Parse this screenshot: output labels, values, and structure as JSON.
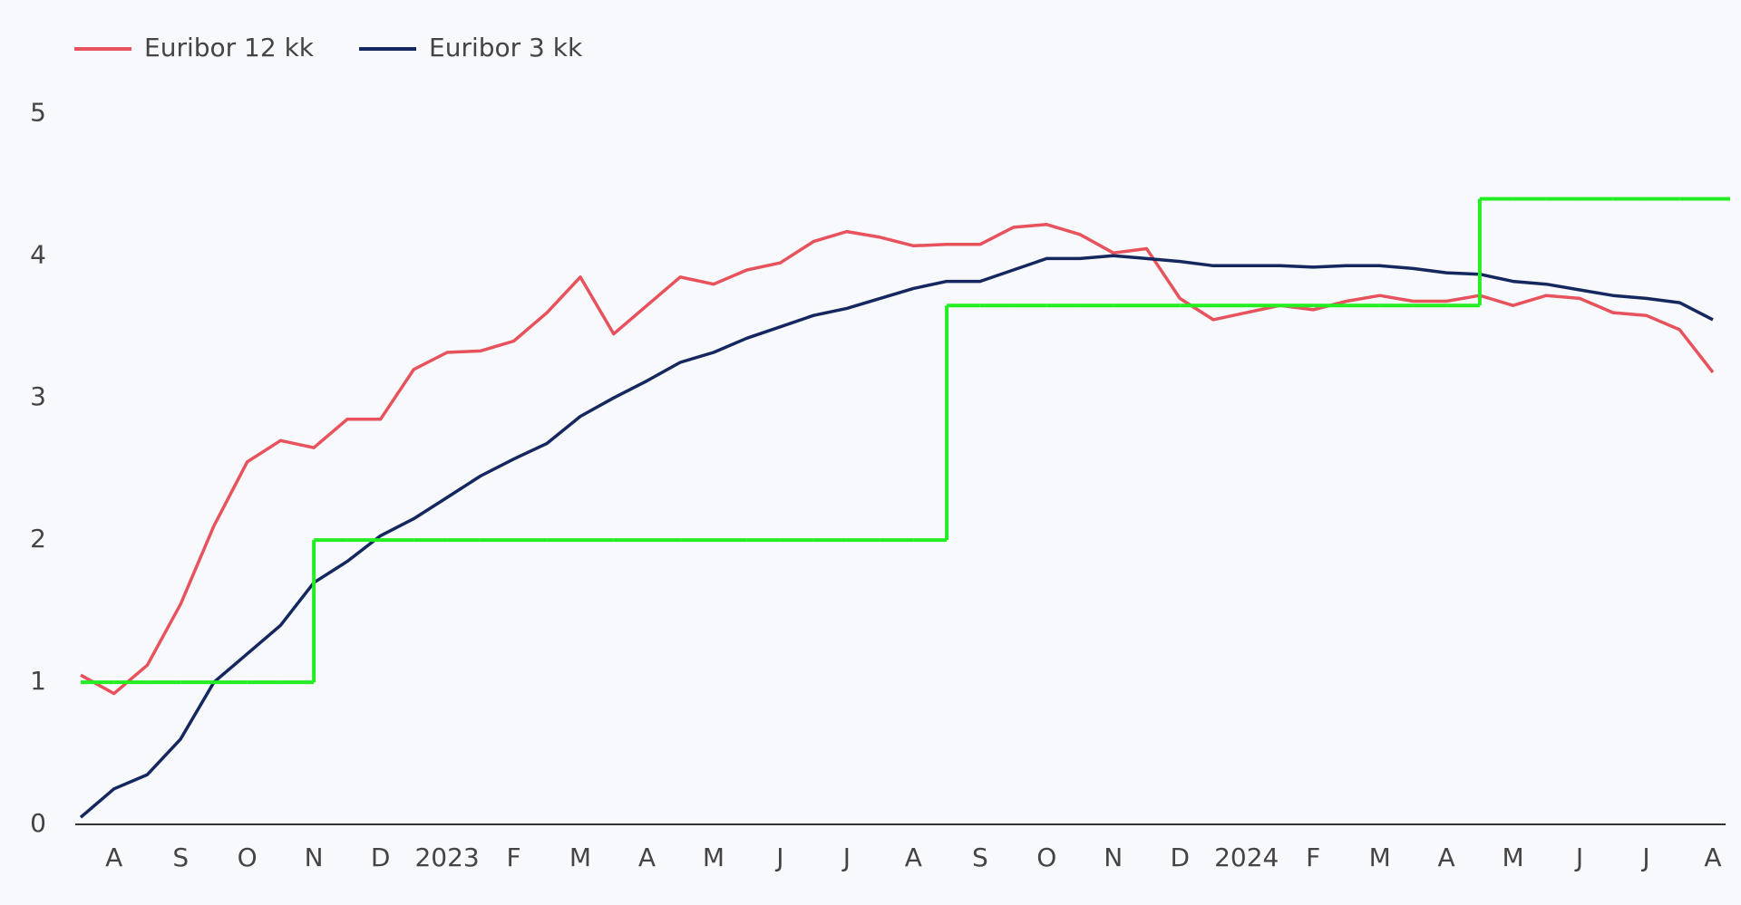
{
  "chart_data": {
    "type": "line",
    "categories": [
      null,
      "A",
      null,
      "S",
      null,
      "O",
      null,
      "N",
      null,
      "D",
      null,
      "2023",
      null,
      "F",
      null,
      "M",
      null,
      "A",
      null,
      "M",
      null,
      "J",
      null,
      "J",
      null,
      "A",
      null,
      "S",
      null,
      "O",
      null,
      "N",
      null,
      "D",
      null,
      "2024",
      null,
      "F",
      null,
      "M",
      null,
      "A",
      null,
      "M",
      null,
      "J",
      null,
      "J",
      null,
      "A"
    ],
    "series": [
      {
        "name": "Euribor 12 kk",
        "color": "#e8525c",
        "values": [
          1.05,
          0.92,
          1.12,
          1.55,
          2.1,
          2.55,
          2.7,
          2.65,
          2.85,
          2.85,
          3.2,
          3.32,
          3.33,
          3.4,
          3.6,
          3.85,
          3.45,
          3.65,
          3.85,
          3.8,
          3.9,
          3.95,
          4.1,
          4.17,
          4.13,
          4.07,
          4.08,
          4.08,
          4.2,
          4.22,
          4.15,
          4.02,
          4.05,
          3.7,
          3.55,
          3.6,
          3.65,
          3.62,
          3.68,
          3.72,
          3.68,
          3.68,
          3.72,
          3.65,
          3.72,
          3.7,
          3.6,
          3.58,
          3.48,
          3.18
        ]
      },
      {
        "name": "Euribor 3 kk",
        "color": "#14285f",
        "values": [
          0.05,
          0.25,
          0.35,
          0.6,
          1.0,
          1.2,
          1.4,
          1.7,
          1.85,
          2.03,
          2.15,
          2.3,
          2.45,
          2.57,
          2.68,
          2.87,
          3.0,
          3.12,
          3.25,
          3.32,
          3.42,
          3.5,
          3.58,
          3.63,
          3.7,
          3.77,
          3.82,
          3.82,
          3.9,
          3.98,
          3.98,
          4.0,
          3.98,
          3.96,
          3.93,
          3.93,
          3.93,
          3.92,
          3.93,
          3.93,
          3.91,
          3.88,
          3.87,
          3.82,
          3.8,
          3.76,
          3.72,
          3.7,
          3.67,
          3.55
        ]
      },
      {
        "color": "#22ee22",
        "step": "after",
        "values": [
          1,
          1,
          1,
          1,
          1,
          1,
          1,
          2,
          2,
          2,
          2,
          2,
          2,
          2,
          2,
          2,
          2,
          2,
          2,
          2,
          2,
          2,
          2,
          2,
          2,
          2,
          3.65,
          3.65,
          3.65,
          3.65,
          3.65,
          3.65,
          3.65,
          3.65,
          3.65,
          3.65,
          3.65,
          3.65,
          3.65,
          3.65,
          3.65,
          3.65,
          4.4,
          4.4,
          4.4,
          4.4,
          4.4,
          4.4,
          4.4,
          4.4
        ]
      }
    ],
    "ylim": [
      0,
      5.2
    ],
    "yticks": [
      0,
      1,
      2,
      3,
      4,
      5
    ],
    "grid": false,
    "legend": "top-left"
  }
}
